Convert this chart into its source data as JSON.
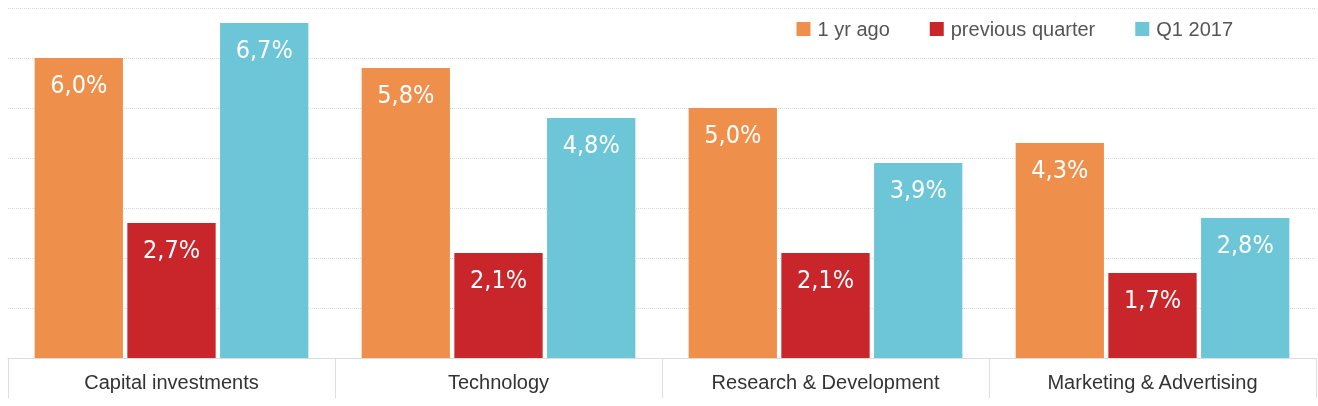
{
  "chart_data": {
    "type": "bar",
    "categories": [
      "Capital investments",
      "Technology",
      "Research & Development",
      "Marketing & Advertising"
    ],
    "series": [
      {
        "name": "1 yr ago",
        "color": "#ef8f4c",
        "values": [
          6.0,
          5.8,
          5.0,
          4.3
        ],
        "value_labels": [
          "6,0%",
          "5,8%",
          "5,0%",
          "4,3%"
        ]
      },
      {
        "name": "previous quarter",
        "color": "#c8262a",
        "values": [
          2.7,
          2.1,
          2.1,
          1.7
        ],
        "value_labels": [
          "2,7%",
          "2,1%",
          "2,1%",
          "1,7%"
        ]
      },
      {
        "name": "Q1 2017",
        "color": "#6cc6d8",
        "values": [
          6.7,
          4.8,
          3.9,
          2.8
        ],
        "value_labels": [
          "6,7%",
          "4,8%",
          "3,9%",
          "2,8%"
        ]
      }
    ],
    "ylim": [
      0,
      7
    ],
    "yticks": [
      {
        "value": 0,
        "label": null
      },
      {
        "value": 1,
        "label": null
      },
      {
        "value": 2,
        "label": null
      },
      {
        "value": 3,
        "label": null
      },
      {
        "value": 4,
        "label": null
      },
      {
        "value": 5,
        "label": null
      },
      {
        "value": 6,
        "label": null
      },
      {
        "value": 7,
        "label": null
      }
    ],
    "tick_labels": "x",
    "grid": "y",
    "legend": "top right"
  }
}
